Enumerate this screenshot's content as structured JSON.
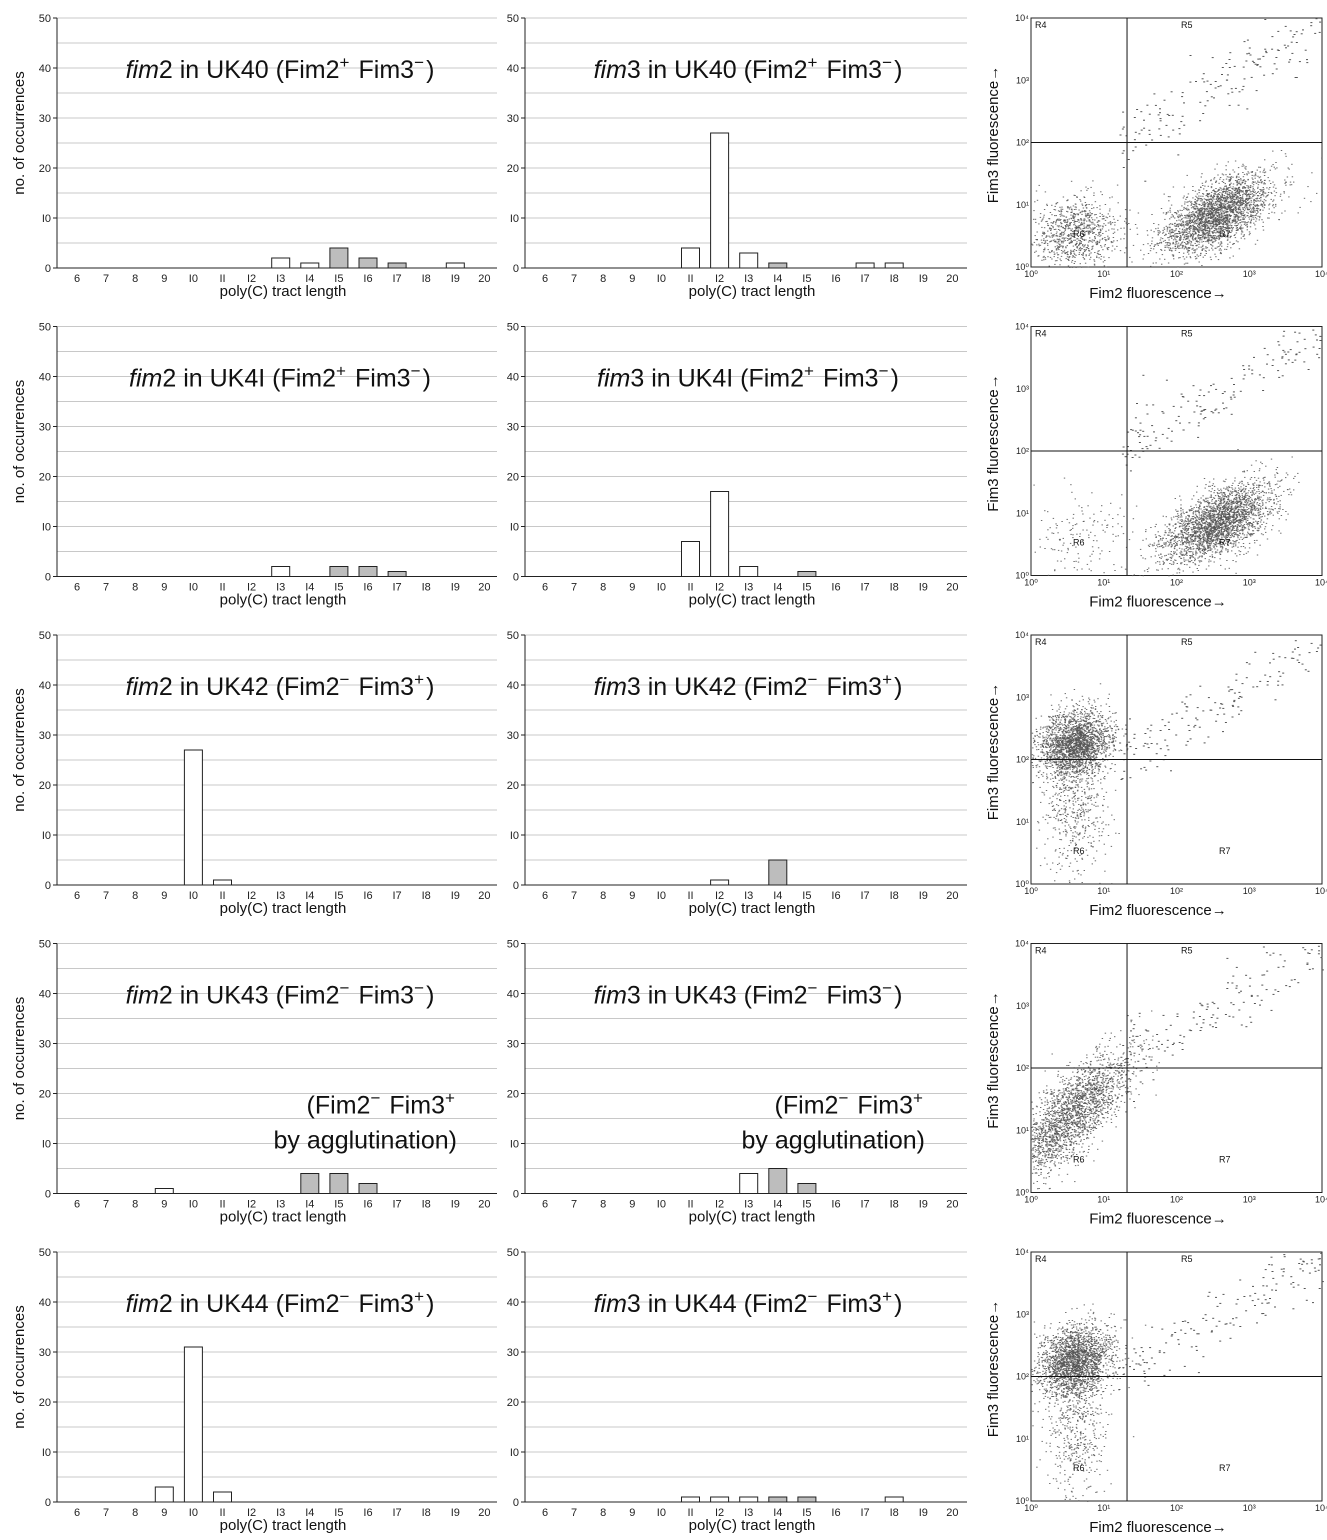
{
  "chart_data": {
    "type": "bar",
    "histogram_x_categories": [
      "6",
      "7",
      "8",
      "9",
      "10",
      "11",
      "12",
      "13",
      "14",
      "15",
      "16",
      "17",
      "18",
      "19",
      "20"
    ],
    "histogram_x_tick_labels": [
      "6",
      "7",
      "8",
      "9",
      "I0",
      "II",
      "I2",
      "I3",
      "I4",
      "I5",
      "I6",
      "I7",
      "I8",
      "I9",
      "20"
    ],
    "histogram_y_ticks": [
      "0",
      "I0",
      "20",
      "30",
      "40",
      "50"
    ],
    "ylim": [
      0,
      50
    ],
    "xlabel": "poly(C) tract length",
    "ylabel": "no. of occurrences",
    "flow_xlabel": "Fim2  fluorescence→",
    "flow_ylabel": "Fim3 fluorescence→",
    "flow_x_ticks": [
      "10⁰",
      "10¹",
      "10²",
      "10³",
      "10⁴"
    ],
    "flow_y_ticks": [
      "10⁰",
      "10¹",
      "10²",
      "10³",
      "10⁴"
    ],
    "flow_gates": [
      "R4",
      "R5",
      "R6",
      "R7"
    ],
    "bar_colors": {
      "white": "#ffffff",
      "gray": "#bdbdbd",
      "outline": "#222222"
    },
    "rows": [
      {
        "left": {
          "gene": "fim2",
          "strain": "UK40",
          "genotype": "(Fim2⁺ Fim3⁻)",
          "bars": [
            {
              "x": 13,
              "value": 2,
              "color": "white"
            },
            {
              "x": 14,
              "value": 1,
              "color": "white"
            },
            {
              "x": 15,
              "value": 4,
              "color": "gray"
            },
            {
              "x": 16,
              "value": 2,
              "color": "gray"
            },
            {
              "x": 17,
              "value": 1,
              "color": "gray"
            },
            {
              "x": 19,
              "value": 1,
              "color": "white"
            }
          ]
        },
        "middle": {
          "gene": "fim3",
          "strain": "UK40",
          "genotype": "(Fim2⁺ Fim3⁻)",
          "bars": [
            {
              "x": 11,
              "value": 4,
              "color": "white"
            },
            {
              "x": 12,
              "value": 27,
              "color": "white"
            },
            {
              "x": 13,
              "value": 3,
              "color": "white"
            },
            {
              "x": 14,
              "value": 1,
              "color": "gray"
            },
            {
              "x": 17,
              "value": 1,
              "color": "white"
            },
            {
              "x": 18,
              "value": 1,
              "color": "white"
            }
          ]
        },
        "flow": {
          "clusters": [
            "R7-heavy",
            "R6-light"
          ]
        }
      },
      {
        "left": {
          "gene": "fim2",
          "strain": "UK4I",
          "genotype": "(Fim2⁺ Fim3⁻)",
          "bars": [
            {
              "x": 13,
              "value": 2,
              "color": "white"
            },
            {
              "x": 15,
              "value": 2,
              "color": "gray"
            },
            {
              "x": 16,
              "value": 2,
              "color": "gray"
            },
            {
              "x": 17,
              "value": 1,
              "color": "gray"
            }
          ]
        },
        "middle": {
          "gene": "fim3",
          "strain": "UK4I",
          "genotype": "(Fim2⁺ Fim3⁻)",
          "bars": [
            {
              "x": 11,
              "value": 7,
              "color": "white"
            },
            {
              "x": 12,
              "value": 17,
              "color": "white"
            },
            {
              "x": 13,
              "value": 2,
              "color": "white"
            },
            {
              "x": 15,
              "value": 1,
              "color": "gray"
            }
          ]
        },
        "flow": {
          "clusters": [
            "R7-heavy"
          ]
        }
      },
      {
        "left": {
          "gene": "fim2",
          "strain": "UK42",
          "genotype": "(Fim2⁻ Fim3⁺)",
          "bars": [
            {
              "x": 10,
              "value": 27,
              "color": "white"
            },
            {
              "x": 11,
              "value": 1,
              "color": "white"
            }
          ]
        },
        "middle": {
          "gene": "fim3",
          "strain": "UK42",
          "genotype": "(Fim2⁻ Fim3⁺)",
          "bars": [
            {
              "x": 12,
              "value": 1,
              "color": "white"
            },
            {
              "x": 14,
              "value": 5,
              "color": "gray"
            }
          ]
        },
        "flow": {
          "clusters": [
            "R4-heavy"
          ]
        }
      },
      {
        "left": {
          "gene": "fim2",
          "strain": "UK43",
          "genotype": "(Fim2⁻ Fim3⁻)",
          "note_line1": "(Fim2⁻ Fim3⁺",
          "note_line2": "by agglutination)",
          "bars": [
            {
              "x": 9,
              "value": 1,
              "color": "white"
            },
            {
              "x": 14,
              "value": 4,
              "color": "gray"
            },
            {
              "x": 15,
              "value": 4,
              "color": "gray"
            },
            {
              "x": 16,
              "value": 2,
              "color": "gray"
            }
          ]
        },
        "middle": {
          "gene": "fim3",
          "strain": "UK43",
          "genotype": "(Fim2⁻ Fim3⁻)",
          "note_line1": "(Fim2⁻ Fim3⁺",
          "note_line2": "by agglutination)",
          "bars": [
            {
              "x": 13,
              "value": 4,
              "color": "white"
            },
            {
              "x": 14,
              "value": 5,
              "color": "gray"
            },
            {
              "x": 15,
              "value": 2,
              "color": "gray"
            }
          ]
        },
        "flow": {
          "clusters": [
            "R6-diagonal"
          ]
        }
      },
      {
        "left": {
          "gene": "fim2",
          "strain": "UK44",
          "genotype": "(Fim2⁻ Fim3⁺)",
          "bars": [
            {
              "x": 9,
              "value": 3,
              "color": "white"
            },
            {
              "x": 10,
              "value": 31,
              "color": "white"
            },
            {
              "x": 11,
              "value": 2,
              "color": "white"
            }
          ]
        },
        "middle": {
          "gene": "fim3",
          "strain": "UK44",
          "genotype": "(Fim2⁻ Fim3⁺)",
          "bars": [
            {
              "x": 11,
              "value": 1,
              "color": "white"
            },
            {
              "x": 12,
              "value": 1,
              "color": "white"
            },
            {
              "x": 13,
              "value": 1,
              "color": "white"
            },
            {
              "x": 14,
              "value": 1,
              "color": "gray"
            },
            {
              "x": 15,
              "value": 1,
              "color": "gray"
            },
            {
              "x": 18,
              "value": 1,
              "color": "white"
            }
          ]
        },
        "flow": {
          "clusters": [
            "R4-heavy"
          ]
        }
      }
    ]
  }
}
